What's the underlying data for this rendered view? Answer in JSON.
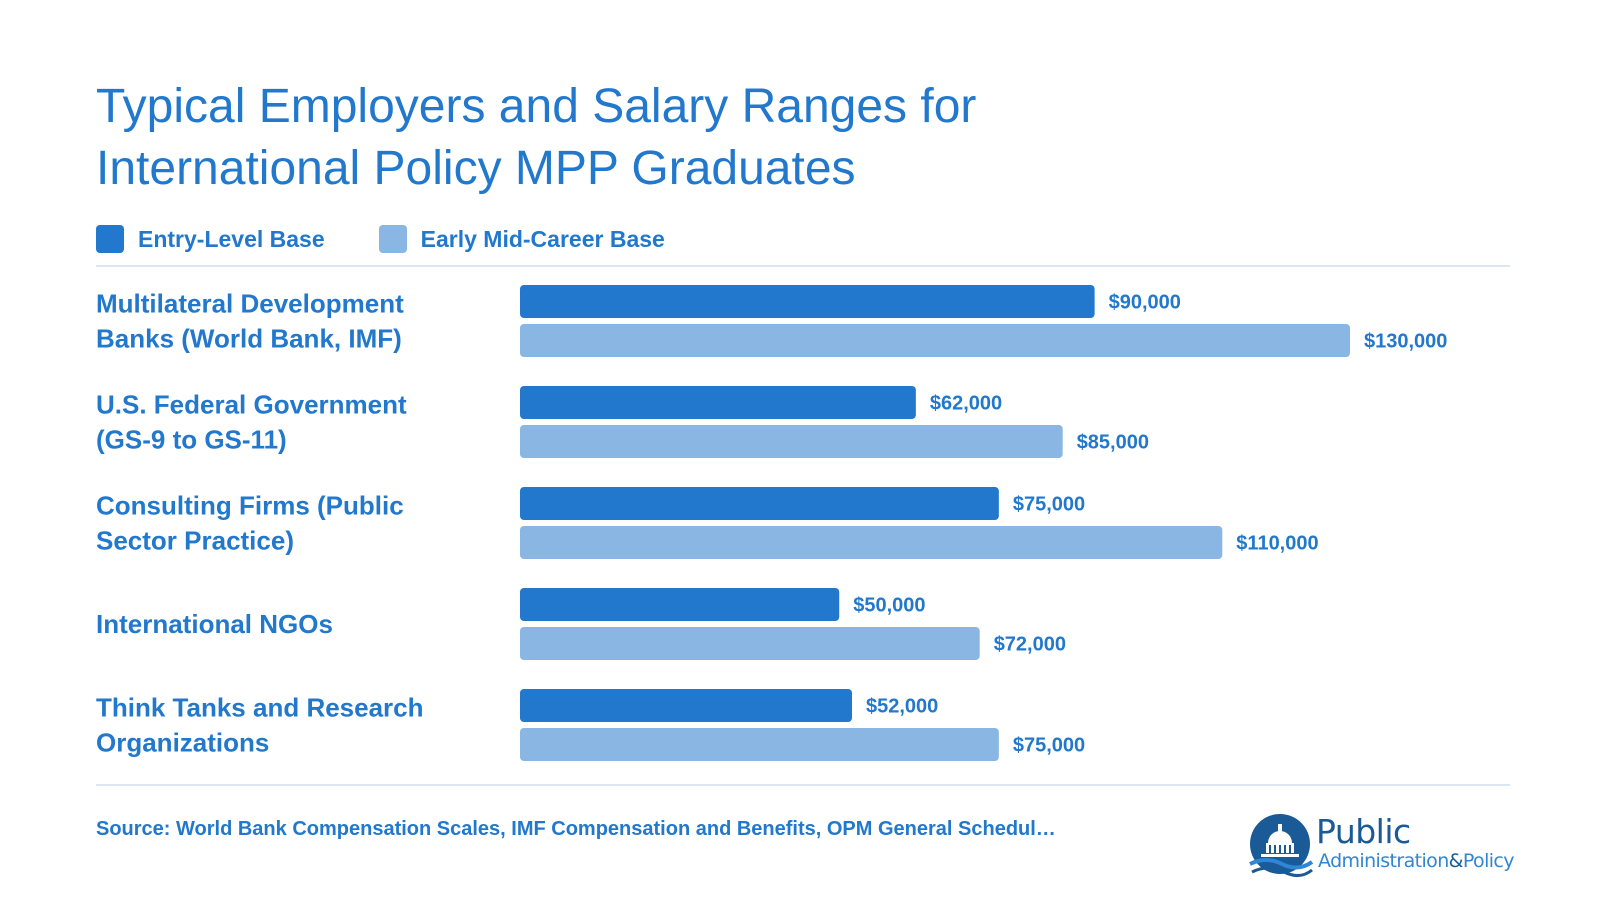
{
  "title_line1": "Typical Employers and Salary Ranges for",
  "title_line2": "International Policy MPP Graduates",
  "legend": {
    "entry": "Entry-Level Base",
    "mid": "Early Mid-Career Base"
  },
  "colors": {
    "entry": "#2178cc",
    "mid": "#8ab6e3",
    "text": "#2178cc",
    "rule": "#dbe6f1"
  },
  "chart_data": {
    "type": "bar",
    "orientation": "horizontal",
    "categories": [
      [
        "Multilateral Development",
        "Banks (World Bank, IMF)"
      ],
      [
        "U.S. Federal Government",
        "(GS-9 to GS-11)"
      ],
      [
        "Consulting Firms (Public",
        "Sector Practice)"
      ],
      [
        "International NGOs"
      ],
      [
        "Think Tanks and Research",
        "Organizations"
      ]
    ],
    "series": [
      {
        "name": "Entry-Level Base",
        "values": [
          90000,
          62000,
          75000,
          50000,
          52000
        ],
        "labels": [
          "$90,000",
          "$62,000",
          "$75,000",
          "$50,000",
          "$52,000"
        ]
      },
      {
        "name": "Early Mid-Career Base",
        "values": [
          130000,
          85000,
          110000,
          72000,
          75000
        ],
        "labels": [
          "$130,000",
          "$85,000",
          "$110,000",
          "$72,000",
          "$75,000"
        ]
      }
    ],
    "xlim": [
      0,
      130000
    ],
    "grid": false,
    "legend_position": "top-left"
  },
  "source": "Source: World Bank Compensation Scales, IMF Compensation and Benefits, OPM General Schedul…",
  "logo": {
    "word1": "Public",
    "word2": "Administration",
    "amp": "&",
    "word3": "Policy"
  }
}
